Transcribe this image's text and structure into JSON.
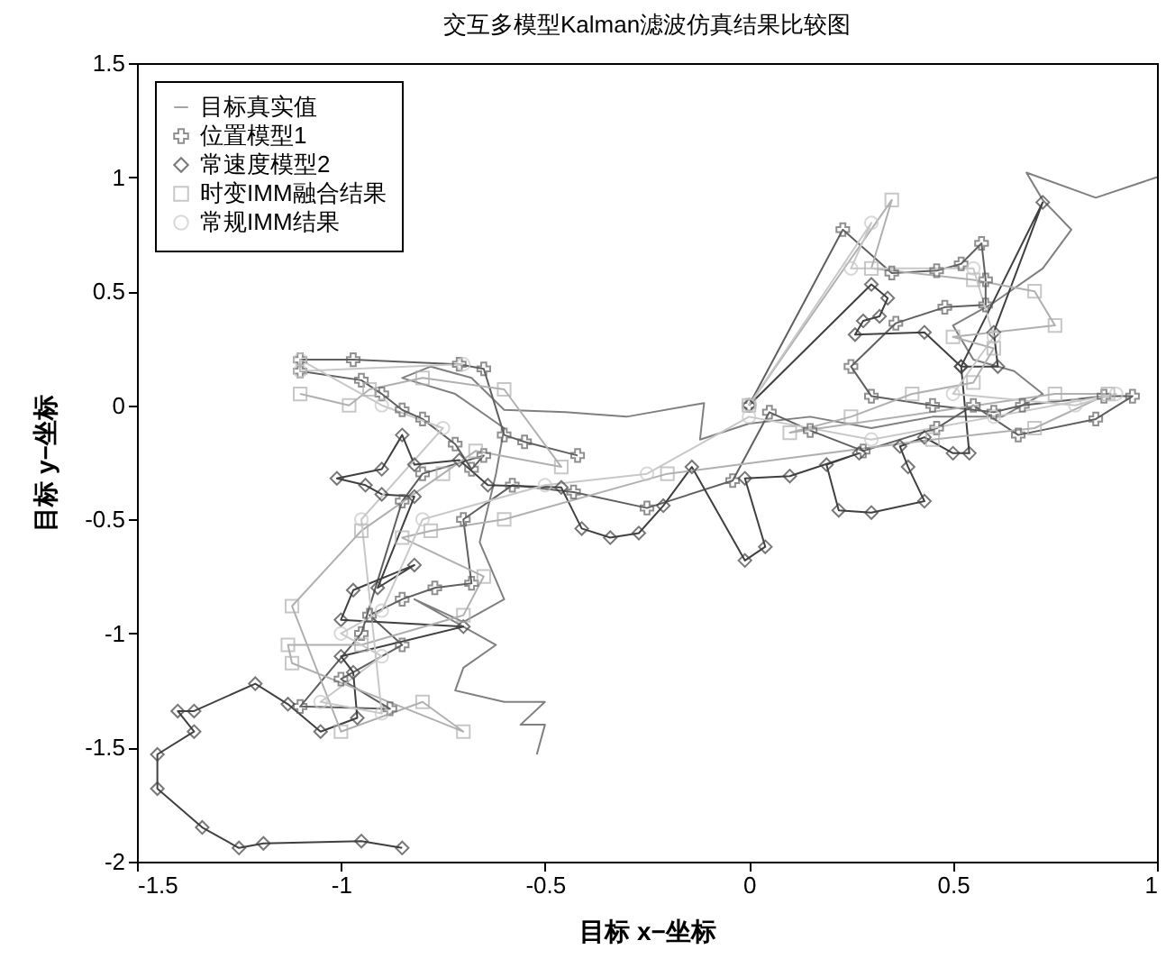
{
  "chart_data": {
    "type": "line",
    "title": "交互多模型Kalman滤波仿真结果比较图",
    "xlabel": "目标 x−坐标",
    "ylabel": "目标 y−坐标",
    "xlim": [
      -1.5,
      1
    ],
    "ylim": [
      -2,
      1.5
    ],
    "xticks": [
      -1.5,
      -1,
      -0.5,
      0,
      0.5,
      1
    ],
    "yticks": [
      -2,
      -1.5,
      -1,
      -0.5,
      0,
      0.5,
      1,
      1.5
    ],
    "grid": false,
    "legend": "top left",
    "series": [
      {
        "name": "目标真实值",
        "color": "#808080",
        "marker": "none",
        "x": [
          1.0,
          0.85,
          0.68,
          0.72,
          0.79,
          0.72,
          0.6,
          0.5,
          0.55,
          0.65,
          0.72,
          0.62,
          0.45,
          0.3,
          0.15,
          0.0,
          -0.12,
          -0.11,
          -0.3,
          -0.45,
          -0.6,
          -0.68,
          -0.78,
          -0.85,
          -0.72,
          -0.6,
          -0.62,
          -0.66,
          -0.6,
          -0.7,
          -0.82,
          -0.62,
          -0.7,
          -0.72,
          -0.6,
          -0.5,
          -0.56,
          -0.5,
          -0.52
        ],
        "values": [
          1.0,
          0.91,
          1.02,
          0.9,
          0.77,
          0.6,
          0.45,
          0.35,
          0.2,
          0.15,
          0.05,
          -0.05,
          -0.05,
          -0.1,
          -0.05,
          -0.08,
          -0.15,
          0.01,
          -0.05,
          -0.03,
          -0.02,
          0.12,
          0.17,
          0.12,
          0.05,
          -0.1,
          -0.3,
          -0.6,
          -0.85,
          -0.95,
          -0.85,
          -1.05,
          -1.15,
          -1.25,
          -1.3,
          -1.3,
          -1.4,
          -1.4,
          -1.53
        ]
      },
      {
        "name": "位置模型1",
        "color": "#606060",
        "marker": "cross",
        "x": [
          0,
          0.23,
          0.35,
          0.46,
          0.52,
          0.57,
          0.58,
          0.58,
          0.48,
          0.36,
          0.25,
          0.3,
          0.45,
          0.6,
          0.67,
          0.87,
          0.94,
          0.85,
          0.66,
          0.55,
          0.46,
          0.28,
          0.15,
          0.05,
          -0.04,
          -0.25,
          -0.43,
          -0.58,
          -0.7,
          -0.68,
          -0.77,
          -0.85,
          -0.93,
          -0.85,
          -1.0,
          -0.88,
          -1.1,
          -0.95,
          -0.85,
          -0.8,
          -0.65,
          -0.68,
          -0.72,
          -0.8,
          -0.85,
          -0.9,
          -0.95,
          -1.1,
          -1.1,
          -0.97,
          -0.71,
          -0.65,
          -0.6,
          -0.55,
          -0.42
        ],
        "values": [
          0,
          0.77,
          0.58,
          0.59,
          0.62,
          0.71,
          0.55,
          0.44,
          0.43,
          0.36,
          0.17,
          0.04,
          0.0,
          -0.03,
          0.0,
          0.04,
          0.04,
          -0.06,
          -0.13,
          0.0,
          -0.1,
          -0.2,
          -0.11,
          -0.03,
          -0.33,
          -0.45,
          -0.38,
          -0.35,
          -0.5,
          -0.78,
          -0.8,
          -0.85,
          -0.92,
          -1.05,
          -1.2,
          -1.33,
          -1.32,
          -1.0,
          -0.42,
          -0.3,
          -0.22,
          -0.28,
          -0.17,
          -0.06,
          -0.02,
          0.05,
          0.11,
          0.15,
          0.2,
          0.2,
          0.18,
          0.16,
          -0.13,
          -0.16,
          -0.22
        ]
      },
      {
        "name": "常速度模型2",
        "color": "#404040",
        "marker": "diamond",
        "x": [
          0,
          0.3,
          0.34,
          0.32,
          0.28,
          0.26,
          0.43,
          0.52,
          0.61,
          0.6,
          0.72,
          0.52,
          0.54,
          0.5,
          0.43,
          0.37,
          0.39,
          0.43,
          0.3,
          0.22,
          0.19,
          0.27,
          0.1,
          -0.01,
          0.04,
          -0.01,
          -0.14,
          -0.21,
          -0.27,
          -0.34,
          -0.41,
          -0.46,
          -0.64,
          -0.71,
          -0.82,
          -0.85,
          -0.9,
          -1.01,
          -0.94,
          -0.9,
          -0.82,
          -0.91,
          -0.82,
          -0.97,
          -1.0,
          -0.7,
          -1.0,
          -0.97,
          -0.96,
          -1.05,
          -1.13,
          -1.21,
          -1.36,
          -1.4,
          -1.36,
          -1.45,
          -1.45,
          -1.34,
          -1.25,
          -1.19,
          -0.95,
          -0.85
        ],
        "values": [
          0,
          0.53,
          0.47,
          0.39,
          0.37,
          0.31,
          0.32,
          0.17,
          0.17,
          0.32,
          0.89,
          0.17,
          -0.21,
          -0.21,
          -0.14,
          -0.18,
          -0.27,
          -0.42,
          -0.47,
          -0.46,
          -0.26,
          -0.21,
          -0.31,
          -0.32,
          -0.62,
          -0.68,
          -0.27,
          -0.44,
          -0.56,
          -0.58,
          -0.54,
          -0.36,
          -0.35,
          -0.24,
          -0.26,
          -0.13,
          -0.28,
          -0.32,
          -0.35,
          -0.39,
          -0.4,
          -0.8,
          -0.7,
          -0.81,
          -0.94,
          -0.97,
          -1.1,
          -1.17,
          -1.37,
          -1.43,
          -1.31,
          -1.22,
          -1.34,
          -1.34,
          -1.43,
          -1.53,
          -1.68,
          -1.85,
          -1.94,
          -1.92,
          -1.91,
          -1.94
        ]
      },
      {
        "name": "时变IMM融合结果",
        "color": "#b0b0b0",
        "marker": "square",
        "x": [
          0,
          0.35,
          0.3,
          0.55,
          0.7,
          0.75,
          0.5,
          0.6,
          0.55,
          0.4,
          0.25,
          0.1,
          0.75,
          0.88,
          0.7,
          0.45,
          -0.2,
          -0.6,
          -0.78,
          -0.85,
          -0.65,
          -0.7,
          -0.95,
          -1.13,
          -1.12,
          -0.7,
          -0.8,
          -1.0,
          -1.12,
          -0.95,
          -0.75,
          -0.67,
          -0.46,
          -0.6,
          -0.8,
          -0.93,
          -0.98,
          -1.1
        ],
        "values": [
          0,
          0.9,
          0.6,
          0.55,
          0.5,
          0.35,
          0.3,
          0.25,
          0.1,
          0.05,
          -0.05,
          -0.12,
          0.05,
          0.05,
          -0.1,
          -0.15,
          -0.3,
          -0.5,
          -0.55,
          -0.58,
          -0.75,
          -0.92,
          -1.05,
          -1.05,
          -1.13,
          -1.43,
          -1.3,
          -1.43,
          -0.88,
          -0.55,
          -0.3,
          -0.2,
          -0.27,
          0.07,
          0.12,
          0.07,
          0.0,
          0.05
        ]
      },
      {
        "name": "常规IMM结果",
        "color": "#c8c8c8",
        "marker": "circle",
        "x": [
          0,
          0.3,
          0.25,
          0.55,
          0.6,
          0.5,
          0.8,
          0.9,
          0.6,
          0.3,
          0.0,
          -0.25,
          -0.5,
          -0.8,
          -0.9,
          -1.0,
          -0.9,
          -1.05,
          -0.9,
          -0.95,
          -0.75,
          -0.9,
          -1.1,
          -1.1,
          -0.7
        ],
        "values": [
          0,
          0.8,
          0.6,
          0.6,
          0.3,
          0.05,
          0.0,
          0.05,
          -0.05,
          -0.15,
          -0.05,
          -0.3,
          -0.35,
          -0.5,
          -0.9,
          -1.0,
          -1.1,
          -1.3,
          -1.35,
          -0.5,
          -0.1,
          0.0,
          0.2,
          0.15,
          0.18
        ]
      }
    ]
  }
}
